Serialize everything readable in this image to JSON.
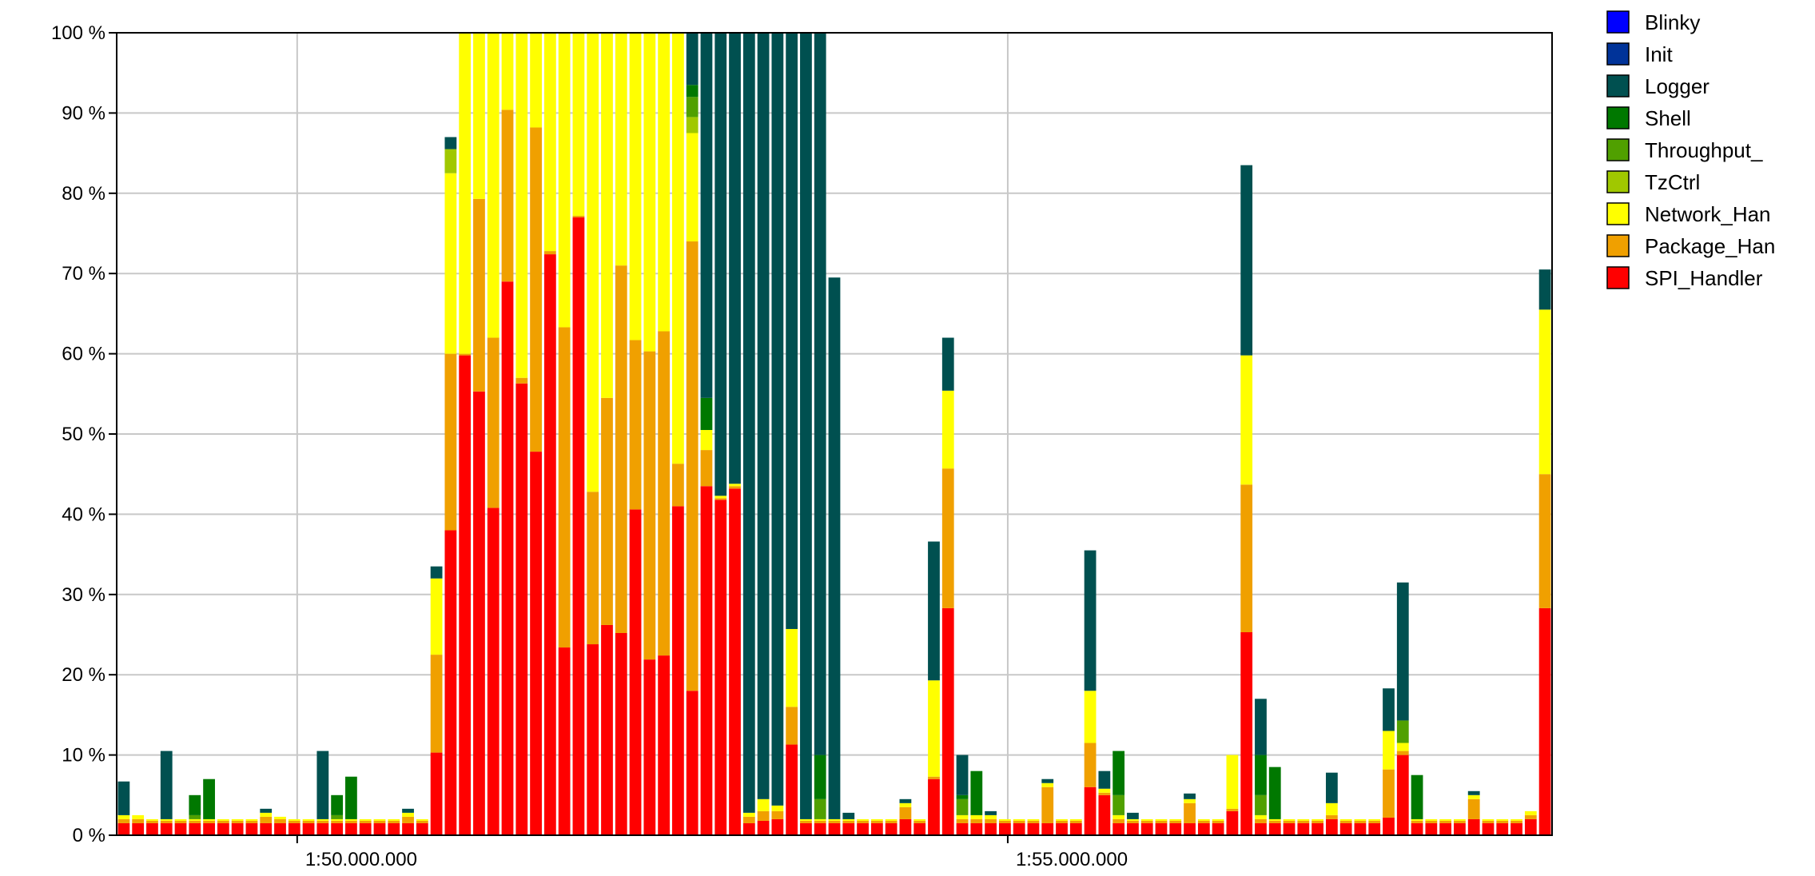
{
  "chart_data": {
    "type": "bar",
    "stacked": true,
    "title": "",
    "xlabel": "",
    "ylabel": "",
    "ylim": [
      0,
      100
    ],
    "y_ticks": [
      0,
      10,
      20,
      30,
      40,
      50,
      60,
      70,
      80,
      90,
      100
    ],
    "y_tick_labels": [
      "0 %",
      "10 %",
      "20 %",
      "30 %",
      "40 %",
      "50 %",
      "60 %",
      "70 %",
      "80 %",
      "90 %",
      "100 %"
    ],
    "x_tick_labels": [
      "1:50.000.000",
      "1:55.000.000"
    ],
    "x_tick_bar_positions": [
      12.7,
      62.7
    ],
    "grid": true,
    "legend_position": "right",
    "series": [
      {
        "name": "Blinky",
        "color": "#0000ff"
      },
      {
        "name": "Init",
        "color": "#003399"
      },
      {
        "name": "Logger",
        "color": "#005050"
      },
      {
        "name": "Shell",
        "color": "#007800"
      },
      {
        "name": "Throughput_",
        "color": "#50a000"
      },
      {
        "name": "TzCtrl",
        "color": "#a0c800"
      },
      {
        "name": "Network_Han",
        "color": "#ffff00"
      },
      {
        "name": "Package_Han",
        "color": "#f0a000"
      },
      {
        "name": "SPI_Handler",
        "color": "#ff0000"
      }
    ],
    "stack_order_bottom_to_top": [
      "SPI_Handler",
      "Package_Han",
      "Network_Han",
      "TzCtrl",
      "Throughput_",
      "Shell",
      "Logger",
      "Init",
      "Blinky"
    ],
    "bars": [
      {
        "SPI_Handler": 1.5,
        "Package_Han": 0.5,
        "Network_Han": 0.5,
        "Logger": 4.2
      },
      {
        "SPI_Handler": 1.5,
        "Package_Han": 0.5,
        "Network_Han": 0.5
      },
      {
        "SPI_Handler": 1.5,
        "Package_Han": 0.3,
        "Network_Han": 0.2
      },
      {
        "SPI_Handler": 1.5,
        "Package_Han": 0.3,
        "Network_Han": 0.2,
        "Logger": 8.5
      },
      {
        "SPI_Handler": 1.5,
        "Package_Han": 0.3,
        "Network_Han": 0.2
      },
      {
        "SPI_Handler": 1.5,
        "Package_Han": 0.3,
        "Network_Han": 0.2,
        "Throughput_": 0.5,
        "Shell": 2.5
      },
      {
        "SPI_Handler": 1.5,
        "Package_Han": 0.3,
        "Network_Han": 0.2,
        "Shell": 5.0
      },
      {
        "SPI_Handler": 1.5,
        "Package_Han": 0.3,
        "Network_Han": 0.2
      },
      {
        "SPI_Handler": 1.5,
        "Package_Han": 0.3,
        "Network_Han": 0.2
      },
      {
        "SPI_Handler": 1.5,
        "Package_Han": 0.3,
        "Network_Han": 0.2
      },
      {
        "SPI_Handler": 1.5,
        "Package_Han": 0.8,
        "Network_Han": 0.5,
        "Logger": 0.5
      },
      {
        "SPI_Handler": 1.5,
        "Package_Han": 0.5,
        "Network_Han": 0.3
      },
      {
        "SPI_Handler": 1.5,
        "Package_Han": 0.3,
        "Network_Han": 0.2
      },
      {
        "SPI_Handler": 1.5,
        "Package_Han": 0.3,
        "Network_Han": 0.2
      },
      {
        "SPI_Handler": 1.5,
        "Package_Han": 0.3,
        "Network_Han": 0.2,
        "Logger": 8.5
      },
      {
        "SPI_Handler": 1.5,
        "Package_Han": 0.3,
        "Network_Han": 0.2,
        "Throughput_": 0.5,
        "Shell": 2.5
      },
      {
        "SPI_Handler": 1.5,
        "Package_Han": 0.3,
        "Network_Han": 0.2,
        "Shell": 5.3
      },
      {
        "SPI_Handler": 1.5,
        "Package_Han": 0.3,
        "Network_Han": 0.2
      },
      {
        "SPI_Handler": 1.5,
        "Package_Han": 0.3,
        "Network_Han": 0.2
      },
      {
        "SPI_Handler": 1.5,
        "Package_Han": 0.3,
        "Network_Han": 0.2
      },
      {
        "SPI_Handler": 1.5,
        "Package_Han": 0.8,
        "Network_Han": 0.5,
        "Logger": 0.5
      },
      {
        "SPI_Handler": 1.5,
        "Package_Han": 0.3,
        "Network_Han": 0.2
      },
      {
        "SPI_Handler": 10.3,
        "Package_Han": 12.2,
        "Network_Han": 9.5,
        "Logger": 1.5
      },
      {
        "SPI_Handler": 38.0,
        "Package_Han": 22.0,
        "Network_Han": 22.5,
        "TzCtrl": 3.0,
        "Logger": 1.5
      },
      {
        "SPI_Handler": 59.8,
        "Package_Han": 0.2,
        "Network_Han": 40.0
      },
      {
        "SPI_Handler": 55.3,
        "Package_Han": 24.0,
        "Network_Han": 20.7
      },
      {
        "SPI_Handler": 40.8,
        "Package_Han": 21.2,
        "Network_Han": 38.0
      },
      {
        "SPI_Handler": 69.0,
        "Package_Han": 21.4,
        "Network_Han": 9.6
      },
      {
        "SPI_Handler": 56.3,
        "Package_Han": 0.7,
        "Network_Han": 43.0
      },
      {
        "SPI_Handler": 47.8,
        "Package_Han": 40.4,
        "Network_Han": 11.8
      },
      {
        "SPI_Handler": 72.4,
        "Package_Han": 0.4,
        "Network_Han": 27.2
      },
      {
        "SPI_Handler": 23.4,
        "Package_Han": 39.9,
        "Network_Han": 36.7
      },
      {
        "SPI_Handler": 77.0,
        "Package_Han": 0.2,
        "Network_Han": 22.8
      },
      {
        "SPI_Handler": 23.8,
        "Package_Han": 19.0,
        "Network_Han": 57.2
      },
      {
        "SPI_Handler": 26.2,
        "Package_Han": 28.3,
        "Network_Han": 45.5
      },
      {
        "SPI_Handler": 25.2,
        "Package_Han": 45.8,
        "Network_Han": 29.0
      },
      {
        "SPI_Handler": 40.6,
        "Package_Han": 21.1,
        "Network_Han": 38.3
      },
      {
        "SPI_Handler": 21.9,
        "Package_Han": 38.4,
        "Network_Han": 39.7
      },
      {
        "SPI_Handler": 22.4,
        "Package_Han": 40.4,
        "Network_Han": 37.2
      },
      {
        "SPI_Handler": 41.0,
        "Package_Han": 5.3,
        "Network_Han": 53.7
      },
      {
        "SPI_Handler": 18.0,
        "Package_Han": 56.0,
        "Network_Han": 13.5,
        "TzCtrl": 2.0,
        "Throughput_": 2.5,
        "Shell": 1.5,
        "Logger": 6.5
      },
      {
        "SPI_Handler": 43.5,
        "Package_Han": 4.5,
        "Network_Han": 2.5,
        "Shell": 4.0,
        "Logger": 45.5
      },
      {
        "SPI_Handler": 41.8,
        "Package_Han": 0.2,
        "Network_Han": 0.3,
        "Logger": 57.7
      },
      {
        "SPI_Handler": 43.2,
        "Package_Han": 0.3,
        "Network_Han": 0.3,
        "Logger": 56.2
      },
      {
        "SPI_Handler": 1.5,
        "Package_Han": 0.8,
        "Network_Han": 0.5,
        "Logger": 97.2
      },
      {
        "SPI_Handler": 1.8,
        "Package_Han": 1.2,
        "Network_Han": 1.5,
        "Logger": 95.5
      },
      {
        "SPI_Handler": 2.0,
        "Package_Han": 1.0,
        "Network_Han": 0.7,
        "Logger": 96.3
      },
      {
        "SPI_Handler": 11.3,
        "Package_Han": 4.7,
        "Network_Han": 9.7,
        "Logger": 74.3
      },
      {
        "SPI_Handler": 1.5,
        "Package_Han": 0.3,
        "Network_Han": 0.2,
        "Logger": 98.0
      },
      {
        "SPI_Handler": 1.5,
        "Package_Han": 0.3,
        "Network_Han": 0.2,
        "Throughput_": 2.5,
        "Shell": 5.5,
        "Logger": 90.0
      },
      {
        "SPI_Handler": 1.5,
        "Package_Han": 0.3,
        "Network_Han": 0.2,
        "Logger": 67.5
      },
      {
        "SPI_Handler": 1.5,
        "Package_Han": 0.3,
        "Network_Han": 0.2,
        "Logger": 0.8
      },
      {
        "SPI_Handler": 1.5,
        "Package_Han": 0.3,
        "Network_Han": 0.2
      },
      {
        "SPI_Handler": 1.5,
        "Package_Han": 0.3,
        "Network_Han": 0.2
      },
      {
        "SPI_Handler": 1.5,
        "Package_Han": 0.3,
        "Network_Han": 0.2
      },
      {
        "SPI_Handler": 2.0,
        "Package_Han": 1.5,
        "Network_Han": 0.5,
        "Logger": 0.5
      },
      {
        "SPI_Handler": 1.5,
        "Package_Han": 0.3,
        "Network_Han": 0.2
      },
      {
        "SPI_Handler": 7.0,
        "Package_Han": 0.3,
        "Network_Han": 12.0,
        "Logger": 17.3
      },
      {
        "SPI_Handler": 28.3,
        "Package_Han": 17.4,
        "Network_Han": 9.7,
        "Logger": 6.6
      },
      {
        "SPI_Handler": 1.5,
        "Package_Han": 0.5,
        "Network_Han": 0.5,
        "Throughput_": 2.0,
        "Shell": 0.5,
        "Logger": 5.0
      },
      {
        "SPI_Handler": 1.5,
        "Package_Han": 0.5,
        "Network_Han": 0.5,
        "Shell": 5.5
      },
      {
        "SPI_Handler": 1.5,
        "Package_Han": 0.5,
        "Network_Han": 0.5,
        "Logger": 0.5
      },
      {
        "SPI_Handler": 1.5,
        "Package_Han": 0.3,
        "Network_Han": 0.2
      },
      {
        "SPI_Handler": 1.5,
        "Package_Han": 0.3,
        "Network_Han": 0.2
      },
      {
        "SPI_Handler": 1.5,
        "Package_Han": 0.3,
        "Network_Han": 0.2
      },
      {
        "SPI_Handler": 1.5,
        "Package_Han": 4.5,
        "Network_Han": 0.5,
        "Logger": 0.5
      },
      {
        "SPI_Handler": 1.5,
        "Package_Han": 0.3,
        "Network_Han": 0.2
      },
      {
        "SPI_Handler": 1.5,
        "Package_Han": 0.3,
        "Network_Han": 0.2
      },
      {
        "SPI_Handler": 6.0,
        "Package_Han": 5.5,
        "Network_Han": 6.5,
        "Logger": 17.5
      },
      {
        "SPI_Handler": 5.0,
        "Package_Han": 0.3,
        "Network_Han": 0.5,
        "Logger": 2.2
      },
      {
        "SPI_Handler": 1.5,
        "Package_Han": 0.5,
        "Network_Han": 0.5,
        "Throughput_": 2.5,
        "Shell": 5.5
      },
      {
        "SPI_Handler": 1.5,
        "Package_Han": 0.3,
        "Network_Han": 0.2,
        "Logger": 0.8
      },
      {
        "SPI_Handler": 1.5,
        "Package_Han": 0.3,
        "Network_Han": 0.2
      },
      {
        "SPI_Handler": 1.5,
        "Package_Han": 0.3,
        "Network_Han": 0.2
      },
      {
        "SPI_Handler": 1.5,
        "Package_Han": 0.3,
        "Network_Han": 0.2
      },
      {
        "SPI_Handler": 1.5,
        "Package_Han": 2.5,
        "Network_Han": 0.5,
        "Logger": 0.7
      },
      {
        "SPI_Handler": 1.5,
        "Package_Han": 0.3,
        "Network_Han": 0.2
      },
      {
        "SPI_Handler": 1.5,
        "Package_Han": 0.3,
        "Network_Han": 0.2
      },
      {
        "SPI_Handler": 3.0,
        "Package_Han": 0.3,
        "Network_Han": 6.7
      },
      {
        "SPI_Handler": 25.3,
        "Package_Han": 18.4,
        "Network_Han": 16.1,
        "Logger": 23.7
      },
      {
        "SPI_Handler": 1.5,
        "Package_Han": 0.5,
        "Network_Han": 0.5,
        "Throughput_": 2.5,
        "Shell": 5.0,
        "Logger": 7.0
      },
      {
        "SPI_Handler": 1.5,
        "Package_Han": 0.3,
        "Network_Han": 0.2,
        "Shell": 6.5
      },
      {
        "SPI_Handler": 1.5,
        "Package_Han": 0.3,
        "Network_Han": 0.2
      },
      {
        "SPI_Handler": 1.5,
        "Package_Han": 0.3,
        "Network_Han": 0.2
      },
      {
        "SPI_Handler": 1.5,
        "Package_Han": 0.3,
        "Network_Han": 0.2
      },
      {
        "SPI_Handler": 2.0,
        "Package_Han": 0.5,
        "Network_Han": 1.5,
        "Logger": 3.8
      },
      {
        "SPI_Handler": 1.5,
        "Package_Han": 0.3,
        "Network_Han": 0.2
      },
      {
        "SPI_Handler": 1.5,
        "Package_Han": 0.3,
        "Network_Han": 0.2
      },
      {
        "SPI_Handler": 1.5,
        "Package_Han": 0.3,
        "Network_Han": 0.2
      },
      {
        "SPI_Handler": 2.2,
        "Package_Han": 6.0,
        "Network_Han": 4.8,
        "Logger": 5.3
      },
      {
        "SPI_Handler": 10.0,
        "Package_Han": 0.5,
        "Network_Han": 1.0,
        "Throughput_": 2.8,
        "Logger": 17.2
      },
      {
        "SPI_Handler": 1.5,
        "Package_Han": 0.3,
        "Network_Han": 0.2,
        "Shell": 5.5
      },
      {
        "SPI_Handler": 1.5,
        "Package_Han": 0.3,
        "Network_Han": 0.2
      },
      {
        "SPI_Handler": 1.5,
        "Package_Han": 0.3,
        "Network_Han": 0.2
      },
      {
        "SPI_Handler": 1.5,
        "Package_Han": 0.3,
        "Network_Han": 0.2
      },
      {
        "SPI_Handler": 2.0,
        "Package_Han": 2.5,
        "Network_Han": 0.5,
        "Logger": 0.5
      },
      {
        "SPI_Handler": 1.5,
        "Package_Han": 0.3,
        "Network_Han": 0.2
      },
      {
        "SPI_Handler": 1.5,
        "Package_Han": 0.3,
        "Network_Han": 0.2
      },
      {
        "SPI_Handler": 1.5,
        "Package_Han": 0.3,
        "Network_Han": 0.2
      },
      {
        "SPI_Handler": 2.0,
        "Package_Han": 0.5,
        "Network_Han": 0.5
      },
      {
        "SPI_Handler": 28.3,
        "Package_Han": 16.7,
        "Network_Han": 20.5,
        "Logger": 5.0
      }
    ]
  }
}
